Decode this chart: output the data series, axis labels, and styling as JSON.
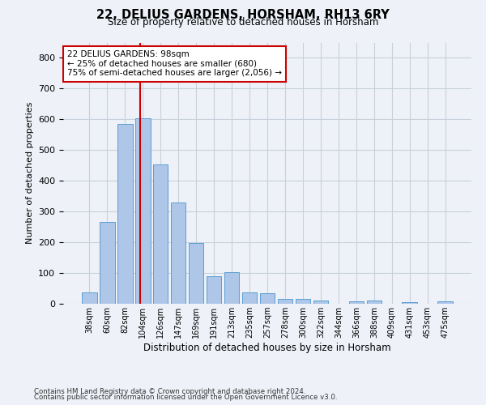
{
  "title1": "22, DELIUS GARDENS, HORSHAM, RH13 6RY",
  "title2": "Size of property relative to detached houses in Horsham",
  "xlabel": "Distribution of detached houses by size in Horsham",
  "ylabel": "Number of detached properties",
  "categories": [
    "38sqm",
    "60sqm",
    "82sqm",
    "104sqm",
    "126sqm",
    "147sqm",
    "169sqm",
    "191sqm",
    "213sqm",
    "235sqm",
    "257sqm",
    "278sqm",
    "300sqm",
    "322sqm",
    "344sqm",
    "366sqm",
    "388sqm",
    "409sqm",
    "431sqm",
    "453sqm",
    "475sqm"
  ],
  "values": [
    37,
    267,
    585,
    603,
    453,
    330,
    197,
    90,
    103,
    38,
    33,
    15,
    15,
    10,
    0,
    8,
    10,
    0,
    5,
    0,
    8
  ],
  "bar_color": "#aec6e8",
  "bar_edge_color": "#5a9fd4",
  "grid_color": "#c8d0dc",
  "background_color": "#eef2f8",
  "vline_color": "#cc0000",
  "annotation_text": "22 DELIUS GARDENS: 98sqm\n← 25% of detached houses are smaller (680)\n75% of semi-detached houses are larger (2,056) →",
  "annotation_box_color": "#ffffff",
  "annotation_box_edge": "#cc0000",
  "footnote1": "Contains HM Land Registry data © Crown copyright and database right 2024.",
  "footnote2": "Contains public sector information licensed under the Open Government Licence v3.0.",
  "ylim": [
    0,
    850
  ]
}
